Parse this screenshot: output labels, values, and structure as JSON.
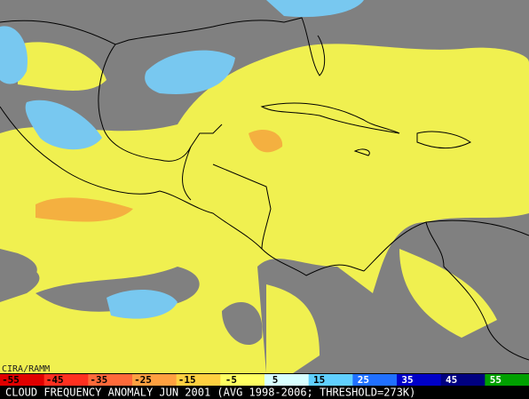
{
  "credit": "CIRA/RAMM",
  "colorbar": {
    "ticks": [
      {
        "label": "-55",
        "color": "#e00000"
      },
      {
        "label": "-45",
        "color": "#ff3020"
      },
      {
        "label": "-35",
        "color": "#ff6a3a"
      },
      {
        "label": "-25",
        "color": "#ffa040"
      },
      {
        "label": "-15",
        "color": "#ffd040"
      },
      {
        "label": "-5",
        "color": "#ffff60"
      },
      {
        "label": "5",
        "color": "#d8ffff"
      },
      {
        "label": "15",
        "color": "#60d0ff"
      },
      {
        "label": "25",
        "color": "#2070ff"
      },
      {
        "label": "35",
        "color": "#0000c8"
      },
      {
        "label": "45",
        "color": "#000080"
      },
      {
        "label": "55",
        "color": "#00a000"
      }
    ]
  },
  "caption": "CLOUD FREQUENCY ANOMALY JUN 2001 (AVG 1998-2006; THRESHOLD=273K)"
}
